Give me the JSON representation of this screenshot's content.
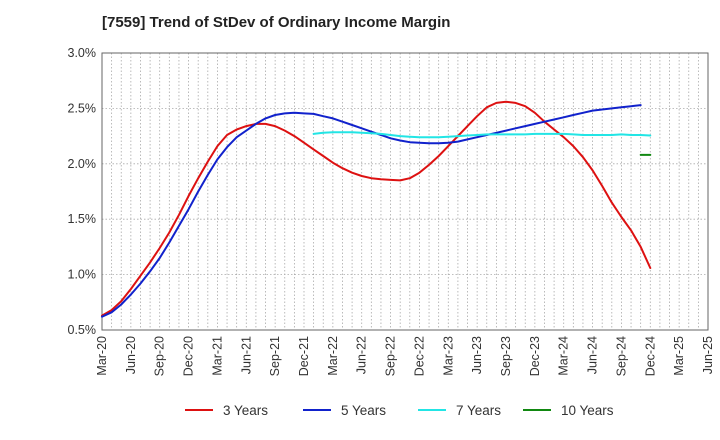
{
  "chart_data": {
    "type": "line",
    "title": "[7559]  Trend of StDev of Ordinary Income Margin",
    "xlabel": "",
    "ylabel": "",
    "ylim": [
      0.5,
      3.0
    ],
    "yticks": [
      "0.5%",
      "1.0%",
      "1.5%",
      "2.0%",
      "2.5%",
      "3.0%"
    ],
    "ytick_values": [
      0.5,
      1.0,
      1.5,
      2.0,
      2.5,
      3.0
    ],
    "xticks": [
      "Mar-20",
      "Jun-20",
      "Sep-20",
      "Dec-20",
      "Mar-21",
      "Jun-21",
      "Sep-21",
      "Dec-21",
      "Mar-22",
      "Jun-22",
      "Sep-22",
      "Dec-22",
      "Mar-23",
      "Jun-23",
      "Sep-23",
      "Dec-23",
      "Mar-24",
      "Jun-24",
      "Sep-24",
      "Dec-24",
      "Mar-25",
      "Jun-25"
    ],
    "grid": true,
    "legend_position": "bottom",
    "series": [
      {
        "name": "3 Years",
        "color": "#dd1111",
        "start_index": 0,
        "values": [
          0.63,
          0.68,
          0.76,
          0.87,
          0.99,
          1.11,
          1.24,
          1.38,
          1.54,
          1.71,
          1.87,
          2.02,
          2.16,
          2.26,
          2.31,
          2.34,
          2.36,
          2.36,
          2.34,
          2.3,
          2.25,
          2.19,
          2.13,
          2.07,
          2.01,
          1.96,
          1.92,
          1.89,
          1.87,
          1.86,
          1.855,
          1.85,
          1.87,
          1.92,
          1.99,
          2.07,
          2.16,
          2.25,
          2.34,
          2.43,
          2.51,
          2.55,
          2.56,
          2.55,
          2.52,
          2.46,
          2.38,
          2.31,
          2.24,
          2.16,
          2.06,
          1.94,
          1.8,
          1.65,
          1.52,
          1.4,
          1.25,
          1.06
        ]
      },
      {
        "name": "5 Years",
        "color": "#1122cc",
        "start_index": 0,
        "values": [
          0.62,
          0.66,
          0.73,
          0.82,
          0.92,
          1.03,
          1.15,
          1.29,
          1.44,
          1.59,
          1.75,
          1.9,
          2.04,
          2.15,
          2.24,
          2.3,
          2.36,
          2.41,
          2.44,
          2.455,
          2.46,
          2.455,
          2.45,
          2.43,
          2.41,
          2.38,
          2.35,
          2.32,
          2.29,
          2.26,
          2.23,
          2.21,
          2.195,
          2.19,
          2.185,
          2.185,
          2.19,
          2.2,
          2.22,
          2.24,
          2.26,
          2.28,
          2.3,
          2.32,
          2.34,
          2.36,
          2.38,
          2.4,
          2.42,
          2.44,
          2.46,
          2.48,
          2.49,
          2.5,
          2.51,
          2.52,
          2.53
        ]
      },
      {
        "name": "7 Years",
        "color": "#22e5e5",
        "start_index": 22,
        "values": [
          2.27,
          2.28,
          2.285,
          2.285,
          2.285,
          2.28,
          2.275,
          2.27,
          2.26,
          2.25,
          2.245,
          2.24,
          2.24,
          2.24,
          2.245,
          2.25,
          2.255,
          2.26,
          2.265,
          2.265,
          2.265,
          2.265,
          2.265,
          2.27,
          2.27,
          2.27,
          2.27,
          2.265,
          2.26,
          2.26,
          2.26,
          2.26,
          2.265,
          2.26,
          2.26,
          2.255
        ]
      },
      {
        "name": "10 Years",
        "color": "#118811",
        "start_index": 56,
        "values": [
          2.08,
          2.08
        ]
      }
    ]
  }
}
